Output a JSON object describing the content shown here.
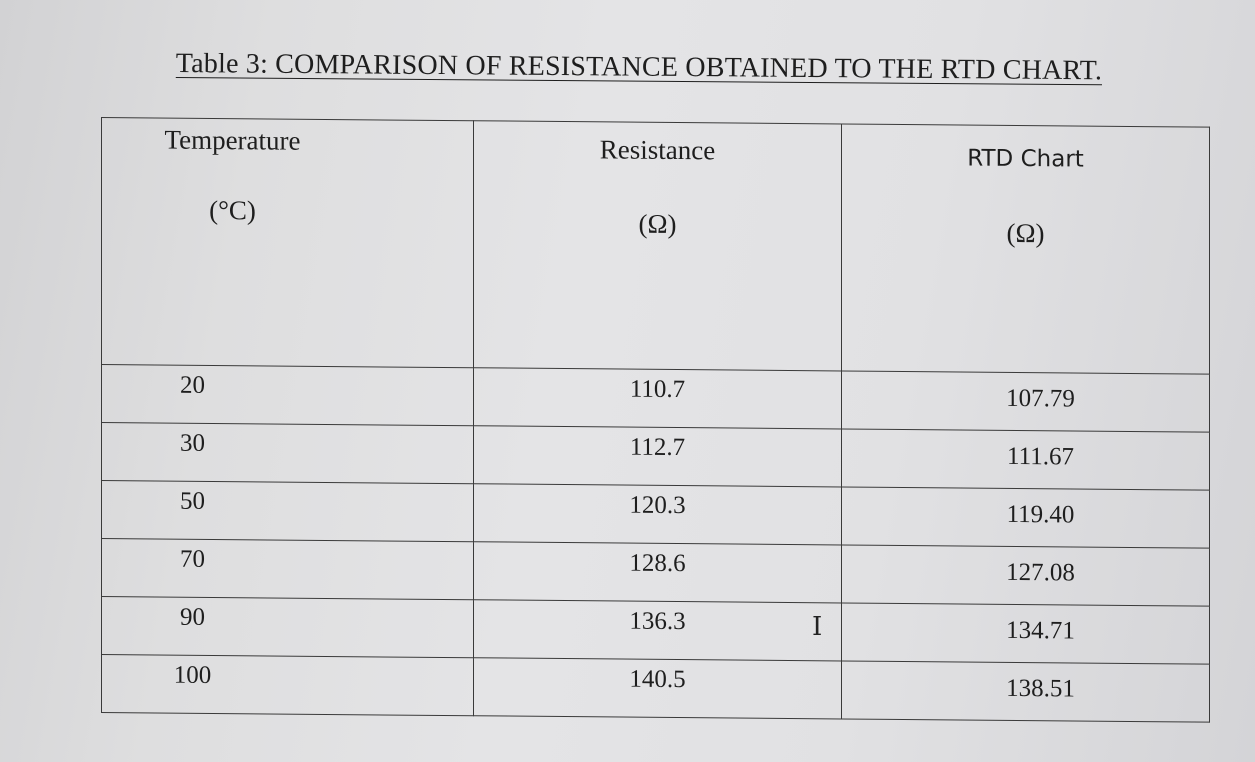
{
  "caption": "Table 3: COMPARISON OF RESISTANCE OBTAINED TO THE RTD CHART.",
  "table": {
    "headers": [
      {
        "name": "Temperature",
        "unit": "(°C)"
      },
      {
        "name": "Resistance",
        "unit": "(Ω)"
      },
      {
        "name": "RTD Chart",
        "unit": "(Ω)"
      }
    ],
    "rows": [
      [
        "20",
        "110.7",
        "107.79"
      ],
      [
        "30",
        "112.7",
        "111.67"
      ],
      [
        "50",
        "120.3",
        "119.40"
      ],
      [
        "70",
        "128.6",
        "127.08"
      ],
      [
        "90",
        "136.3",
        "134.71"
      ],
      [
        "100",
        "140.5",
        "138.51"
      ]
    ]
  },
  "cursor_icon": "text-cursor-icon"
}
